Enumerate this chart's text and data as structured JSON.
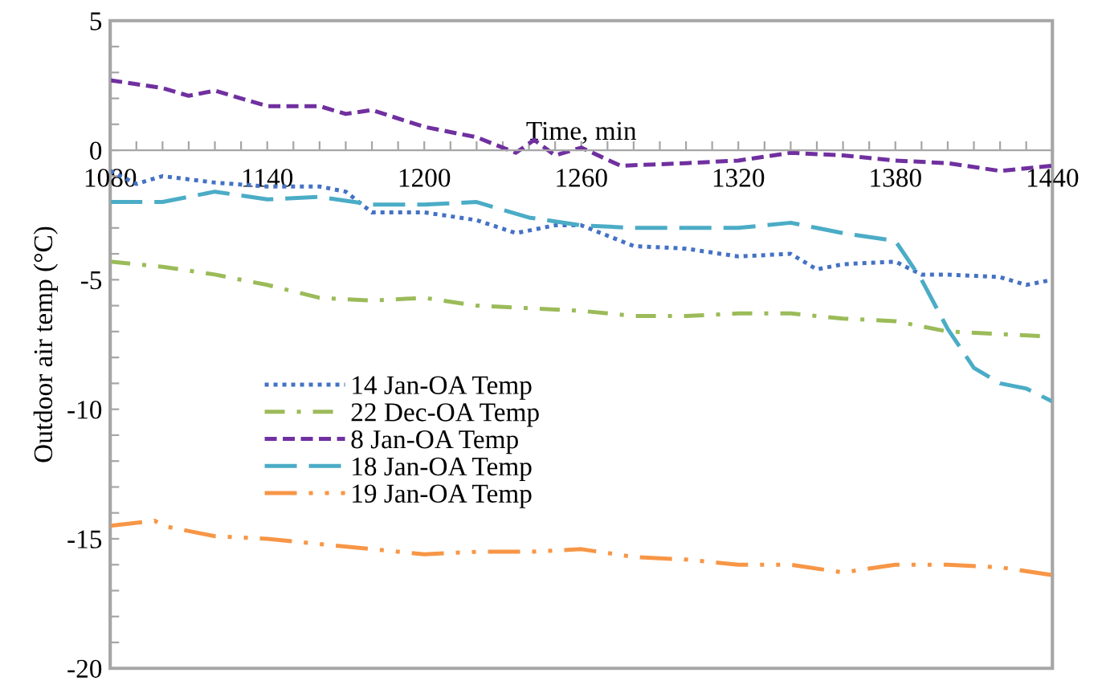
{
  "chart_data": {
    "type": "line",
    "xlabel": "Time, min",
    "ylabel": "Outdoor air temp (°C)",
    "xlim": [
      1080,
      1440
    ],
    "ylim": [
      -20,
      5
    ],
    "xticks": [
      1080,
      {
        "value": 1090,
        "label": null
      },
      {
        "value": 1100,
        "label": null
      },
      {
        "value": 1110,
        "label": null
      },
      {
        "value": 1120,
        "label": null
      },
      {
        "value": 1130,
        "label": null
      },
      1140,
      {
        "value": 1150,
        "label": null
      },
      {
        "value": 1160,
        "label": null
      },
      {
        "value": 1170,
        "label": null
      },
      {
        "value": 1180,
        "label": null
      },
      {
        "value": 1190,
        "label": null
      },
      1200,
      {
        "value": 1210,
        "label": null
      },
      {
        "value": 1220,
        "label": null
      },
      {
        "value": 1230,
        "label": null
      },
      {
        "value": 1240,
        "label": null
      },
      {
        "value": 1250,
        "label": null
      },
      1260,
      {
        "value": 1270,
        "label": null
      },
      {
        "value": 1280,
        "label": null
      },
      {
        "value": 1290,
        "label": null
      },
      {
        "value": 1300,
        "label": null
      },
      {
        "value": 1310,
        "label": null
      },
      1320,
      {
        "value": 1330,
        "label": null
      },
      {
        "value": 1340,
        "label": null
      },
      {
        "value": 1350,
        "label": null
      },
      {
        "value": 1360,
        "label": null
      },
      {
        "value": 1370,
        "label": null
      },
      1380,
      {
        "value": 1390,
        "label": null
      },
      {
        "value": 1400,
        "label": null
      },
      {
        "value": 1410,
        "label": null
      },
      {
        "value": 1420,
        "label": null
      },
      {
        "value": 1430,
        "label": null
      },
      1440
    ],
    "yticks": [
      -20,
      {
        "value": -19,
        "label": null
      },
      {
        "value": -18,
        "label": null
      },
      {
        "value": -17,
        "label": null
      },
      {
        "value": -16,
        "label": null
      },
      -15,
      {
        "value": -14,
        "label": null
      },
      {
        "value": -13,
        "label": null
      },
      {
        "value": -12,
        "label": null
      },
      {
        "value": -11,
        "label": null
      },
      -10,
      {
        "value": -9,
        "label": null
      },
      {
        "value": -8,
        "label": null
      },
      {
        "value": -7,
        "label": null
      },
      {
        "value": -6,
        "label": null
      },
      -5,
      {
        "value": -4,
        "label": null
      },
      {
        "value": -3,
        "label": null
      },
      {
        "value": -2,
        "label": null
      },
      {
        "value": -1,
        "label": null
      },
      0,
      {
        "value": 1,
        "label": null
      },
      {
        "value": 2,
        "label": null
      },
      {
        "value": 3,
        "label": null
      },
      {
        "value": 4,
        "label": null
      },
      5
    ],
    "grid": false,
    "legend": "center",
    "marker": "none",
    "series": [
      {
        "name": "14 Jan-OA Temp",
        "color": "#4472c4",
        "line_style": "dotted",
        "x": [
          1080,
          1090,
          1100,
          1120,
          1140,
          1160,
          1170,
          1180,
          1200,
          1220,
          1235,
          1250,
          1260,
          1280,
          1300,
          1320,
          1340,
          1350,
          1360,
          1380,
          1390,
          1400,
          1420,
          1430,
          1440
        ],
        "values": [
          -0.8,
          -1.3,
          -1.0,
          -1.25,
          -1.4,
          -1.4,
          -1.6,
          -2.4,
          -2.4,
          -2.7,
          -3.2,
          -2.9,
          -2.9,
          -3.7,
          -3.8,
          -4.1,
          -4.0,
          -4.6,
          -4.4,
          -4.3,
          -4.8,
          -4.8,
          -4.9,
          -5.2,
          -5.0
        ]
      },
      {
        "name": "22 Dec-OA Temp",
        "color": "#9bbb59",
        "line_style": "dashdot",
        "x": [
          1080,
          1100,
          1120,
          1140,
          1160,
          1180,
          1200,
          1220,
          1240,
          1260,
          1280,
          1300,
          1320,
          1340,
          1360,
          1380,
          1400,
          1420,
          1440
        ],
        "values": [
          -4.3,
          -4.5,
          -4.8,
          -5.2,
          -5.7,
          -5.8,
          -5.7,
          -6.0,
          -6.1,
          -6.2,
          -6.4,
          -6.4,
          -6.3,
          -6.3,
          -6.5,
          -6.6,
          -7.0,
          -7.1,
          -7.2
        ]
      },
      {
        "name": "8 Jan-OA Temp",
        "color": "#7030a0",
        "line_style": "dashed",
        "x": [
          1080,
          1100,
          1110,
          1120,
          1140,
          1160,
          1170,
          1180,
          1200,
          1220,
          1235,
          1242,
          1250,
          1260,
          1275,
          1300,
          1320,
          1340,
          1360,
          1380,
          1400,
          1420,
          1440
        ],
        "values": [
          2.7,
          2.4,
          2.1,
          2.3,
          1.7,
          1.7,
          1.4,
          1.55,
          0.9,
          0.5,
          -0.1,
          0.4,
          -0.2,
          0.1,
          -0.6,
          -0.5,
          -0.4,
          -0.1,
          -0.2,
          -0.4,
          -0.5,
          -0.8,
          -0.6
        ]
      },
      {
        "name": "18 Jan-OA Temp",
        "color": "#4bacc6",
        "line_style": "longdash",
        "x": [
          1080,
          1100,
          1120,
          1140,
          1160,
          1180,
          1200,
          1220,
          1240,
          1260,
          1280,
          1300,
          1320,
          1340,
          1360,
          1380,
          1390,
          1400,
          1410,
          1420,
          1430,
          1440
        ],
        "values": [
          -2.0,
          -2.0,
          -1.6,
          -1.9,
          -1.8,
          -2.1,
          -2.1,
          -2.0,
          -2.6,
          -2.9,
          -3.0,
          -3.0,
          -3.0,
          -2.8,
          -3.2,
          -3.5,
          -5.0,
          -6.9,
          -8.4,
          -9.0,
          -9.2,
          -9.7
        ]
      },
      {
        "name": "19 Jan-OA Temp",
        "color": "#f79646",
        "line_style": "longdashdotdot",
        "x": [
          1080,
          1097,
          1100,
          1120,
          1140,
          1160,
          1180,
          1200,
          1220,
          1240,
          1260,
          1280,
          1300,
          1320,
          1340,
          1360,
          1380,
          1400,
          1420,
          1440
        ],
        "values": [
          -14.5,
          -14.3,
          -14.5,
          -14.9,
          -15.0,
          -15.2,
          -15.4,
          -15.6,
          -15.5,
          -15.5,
          -15.4,
          -15.7,
          -15.8,
          -16.0,
          -16.0,
          -16.3,
          -16.0,
          -16.0,
          -16.1,
          -16.4
        ]
      }
    ]
  }
}
